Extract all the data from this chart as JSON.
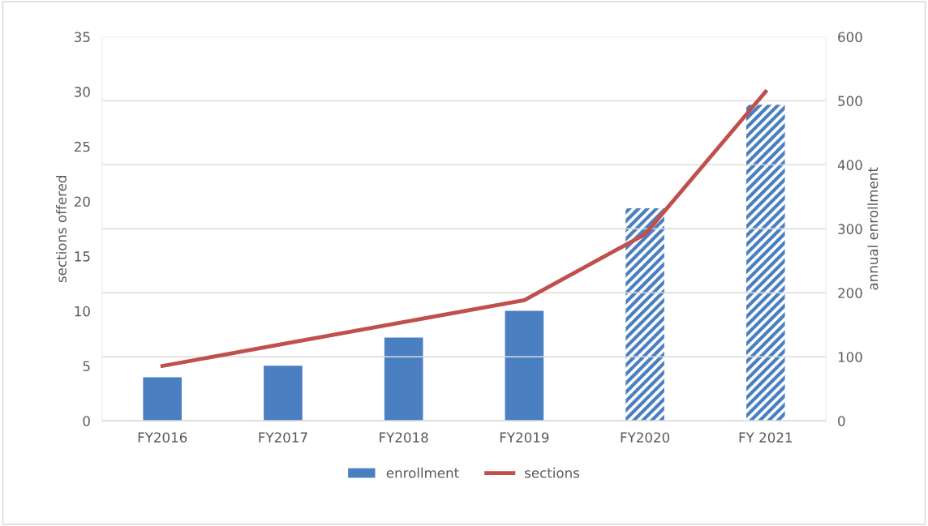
{
  "chart_data": {
    "type": "bar",
    "categories": [
      "FY2016",
      "FY2017",
      "FY2018",
      "FY2019",
      "FY2020",
      "FY 2021"
    ],
    "series": [
      {
        "name": "enrollment",
        "axis": "y2",
        "color": "#4a7fc1",
        "values": [
          68,
          86,
          130,
          172,
          null,
          null
        ]
      },
      {
        "axis": "y2",
        "color": "#4a7fc1",
        "values": [
          null,
          null,
          null,
          null,
          332,
          494
        ]
      },
      {
        "name": "sections",
        "type": "line",
        "color": "#c0504d",
        "values": [
          5,
          7,
          9,
          11,
          17,
          30
        ]
      }
    ],
    "ylabel": "sections offered",
    "y2label": "annual enrollment",
    "ylim": [
      0,
      35
    ],
    "yticks": [
      0,
      5,
      10,
      15,
      20,
      25,
      30,
      35
    ],
    "y2lim": [
      0,
      600
    ],
    "y2ticks": [
      0,
      100,
      200,
      300,
      400,
      500,
      600
    ],
    "grid": "y",
    "legend": "bottom",
    "marker": "none",
    "line_style": "solid"
  }
}
